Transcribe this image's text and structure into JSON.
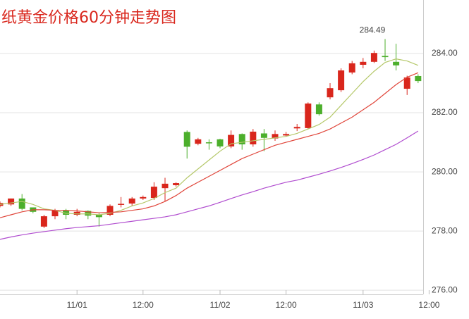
{
  "chart_data": {
    "type": "candlestick",
    "title": "纸黄金价格60分钟走势图",
    "x": [
      0,
      1,
      2,
      3,
      4,
      5,
      6,
      7,
      8,
      9,
      10,
      11,
      12,
      13,
      14,
      15,
      16,
      17,
      18,
      19,
      20,
      21,
      22,
      23,
      24,
      25,
      26,
      27,
      28,
      29,
      30,
      31,
      32,
      33,
      34,
      35,
      36,
      37,
      38
    ],
    "open": [
      278.85,
      278.9,
      279.1,
      278.8,
      278.15,
      278.5,
      278.7,
      278.55,
      278.68,
      278.55,
      278.55,
      278.9,
      278.93,
      279.1,
      279.12,
      279.45,
      279.55,
      281.35,
      280.95,
      281.0,
      281.1,
      280.86,
      281.28,
      280.93,
      281.3,
      281.13,
      281.23,
      281.47,
      281.48,
      282.28,
      282.52,
      282.76,
      283.36,
      283.62,
      283.72,
      283.92,
      283.72,
      282.81,
      283.24
    ],
    "high": [
      279.0,
      279.1,
      279.25,
      278.8,
      278.55,
      278.75,
      278.75,
      278.75,
      278.7,
      278.6,
      278.9,
      279.15,
      279.15,
      279.2,
      279.65,
      279.8,
      279.65,
      281.4,
      281.15,
      281.1,
      281.12,
      281.4,
      281.3,
      281.45,
      281.45,
      281.4,
      281.35,
      281.62,
      282.35,
      282.35,
      283.0,
      283.5,
      283.75,
      283.85,
      284.1,
      284.49,
      284.33,
      283.25,
      283.3
    ],
    "low": [
      278.8,
      278.85,
      278.7,
      278.6,
      278.1,
      278.4,
      278.4,
      278.5,
      278.4,
      278.15,
      278.5,
      278.8,
      278.85,
      279.05,
      279.05,
      279.0,
      279.5,
      280.45,
      280.9,
      280.75,
      280.8,
      280.8,
      280.75,
      280.85,
      280.7,
      281.05,
      281.2,
      281.38,
      281.45,
      281.9,
      282.45,
      282.7,
      283.3,
      283.5,
      283.68,
      283.75,
      283.43,
      282.6,
      283.0
    ],
    "close": [
      278.95,
      279.1,
      278.75,
      278.65,
      278.5,
      278.7,
      278.55,
      278.65,
      278.52,
      278.47,
      278.85,
      278.92,
      279.1,
      279.15,
      279.5,
      279.6,
      279.62,
      280.85,
      281.1,
      280.98,
      280.86,
      281.25,
      280.93,
      281.36,
      281.15,
      281.28,
      281.28,
      281.52,
      282.31,
      281.95,
      282.83,
      283.43,
      283.67,
      283.72,
      284.02,
      283.88,
      283.6,
      283.19,
      283.07
    ],
    "up_color": "#d9261c",
    "down_color": "#4caf2c",
    "lines": [
      {
        "color": "#b5c86a",
        "values": [
          278.9,
          278.95,
          279.0,
          278.9,
          278.75,
          278.7,
          278.6,
          278.58,
          278.58,
          278.55,
          278.6,
          278.7,
          278.85,
          278.95,
          279.1,
          279.3,
          279.45,
          279.8,
          280.1,
          280.4,
          280.7,
          280.95,
          281.0,
          281.05,
          281.1,
          281.15,
          281.2,
          281.3,
          281.45,
          281.6,
          281.85,
          282.25,
          282.65,
          283.05,
          283.4,
          283.7,
          283.82,
          283.75,
          283.6
        ]
      },
      {
        "color": "#e0453a",
        "values": [
          278.45,
          278.55,
          278.65,
          278.72,
          278.72,
          278.7,
          278.7,
          278.68,
          278.65,
          278.62,
          278.63,
          278.65,
          278.7,
          278.75,
          278.85,
          279.0,
          279.2,
          279.45,
          279.65,
          279.85,
          280.05,
          280.25,
          280.45,
          280.6,
          280.75,
          280.9,
          281.0,
          281.1,
          281.2,
          281.3,
          281.45,
          281.65,
          281.85,
          282.1,
          282.35,
          282.65,
          282.95,
          283.2,
          283.35
        ]
      },
      {
        "color": "#b04ccf",
        "values": [
          277.72,
          277.8,
          277.87,
          277.93,
          277.98,
          278.03,
          278.08,
          278.12,
          278.15,
          278.18,
          278.23,
          278.28,
          278.33,
          278.38,
          278.43,
          278.48,
          278.55,
          278.65,
          278.75,
          278.85,
          278.97,
          279.1,
          279.22,
          279.33,
          279.45,
          279.55,
          279.65,
          279.72,
          279.82,
          279.92,
          280.03,
          280.15,
          280.28,
          280.42,
          280.57,
          280.75,
          280.93,
          281.15,
          281.38
        ]
      }
    ],
    "xlim": [
      0,
      38.46
    ],
    "xticks": [
      {
        "value": 7,
        "label": "11/01"
      },
      {
        "value": 13,
        "label": "12:00"
      },
      {
        "value": 20,
        "label": "11/02"
      },
      {
        "value": 26,
        "label": "12:00"
      },
      {
        "value": 33,
        "label": "11/03"
      },
      {
        "value": 39,
        "label": "12:00"
      }
    ],
    "ylim": [
      275.86,
      285.81
    ],
    "yticks": [
      {
        "value": 276,
        "label": "276.00"
      },
      {
        "value": 278,
        "label": "278.00"
      },
      {
        "value": 280,
        "label": "280.00"
      },
      {
        "value": 282,
        "label": "282.00"
      },
      {
        "value": 284,
        "label": "284.00"
      }
    ],
    "grid": true,
    "high_label_index": 35
  }
}
